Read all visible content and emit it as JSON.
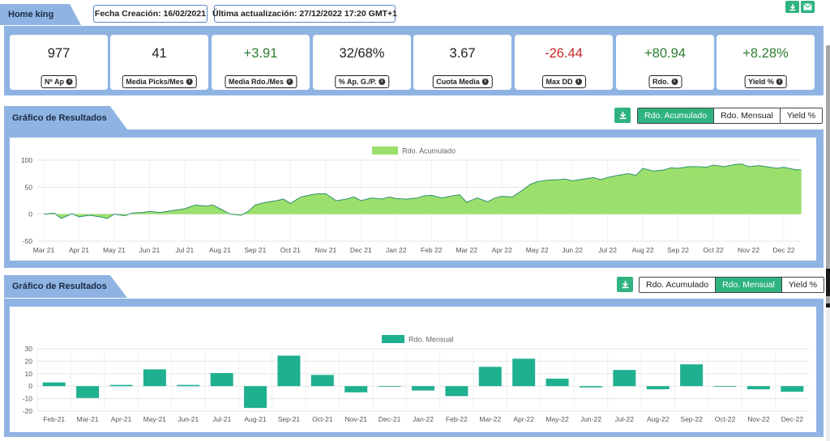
{
  "header": {
    "tab_label": "Home king",
    "created": "Fecha Creación: 16/02/2021",
    "updated": "Última actualización: 27/12/2022 17:20 GMT+1"
  },
  "colors": {
    "band": "#8fb4e3",
    "accent": "#2fb380",
    "area_fill": "#9be06c",
    "area_line": "#2f8f6f",
    "bar": "#1fb090",
    "positive": "#2e7d32",
    "negative": "#c62828"
  },
  "stats": [
    {
      "value": "977",
      "label": "Nº Ap",
      "tone": "neutral"
    },
    {
      "value": "41",
      "label": "Media Picks/Mes",
      "tone": "neutral"
    },
    {
      "value": "+3.91",
      "label": "Media Rdo./Mes",
      "tone": "pos"
    },
    {
      "value": "32/68%",
      "label": "% Ap. G./P.",
      "tone": "neutral"
    },
    {
      "value": "3.67",
      "label": "Cuota Media",
      "tone": "neutral"
    },
    {
      "value": "-26.44",
      "label": "Max DD",
      "tone": "neg"
    },
    {
      "value": "+80.94",
      "label": "Rdo.",
      "tone": "pos"
    },
    {
      "value": "+8.28%",
      "label": "Yield %",
      "tone": "pos"
    }
  ],
  "chart1": {
    "section_title": "Gráfico de Resultados",
    "tabs": [
      "Rdo. Acumulado",
      "Rdo. Mensual",
      "Yield %"
    ],
    "active_tab": 0
  },
  "chart2": {
    "section_title": "Gráfico de Resultados",
    "tabs": [
      "Rdo. Acumulado",
      "Rdo. Mensual",
      "Yield %"
    ],
    "active_tab": 1
  },
  "chart_data": [
    {
      "type": "area",
      "legend": [
        "Rdo. Acumulado"
      ],
      "legend_position": "top",
      "grid": true,
      "ylim": [
        -50,
        100
      ],
      "yticks": [
        -50,
        0,
        50,
        100
      ],
      "xlabels": [
        "Mar 21",
        "Apr 21",
        "May 21",
        "Jun 21",
        "Jul 21",
        "Aug 21",
        "Sep 21",
        "Oct 21",
        "Nov 21",
        "Dec 21",
        "Jan 22",
        "Feb 22",
        "Mar 22",
        "Apr 22",
        "May 22",
        "Jun 22",
        "Jul 22",
        "Aug 22",
        "Sep 22",
        "Oct 22",
        "Nov 22",
        "Dec 22"
      ],
      "series": [
        {
          "name": "Rdo. Acumulado",
          "x": [
            0,
            0.3,
            0.5,
            0.8,
            1.0,
            1.3,
            1.6,
            1.8,
            2.0,
            2.3,
            2.5,
            2.8,
            3.0,
            3.3,
            3.6,
            3.8,
            4.0,
            4.3,
            4.6,
            4.8,
            5.0,
            5.3,
            5.6,
            5.8,
            6.0,
            6.3,
            6.6,
            6.8,
            7.0,
            7.3,
            7.6,
            7.8,
            8.0,
            8.3,
            8.6,
            8.8,
            9.0,
            9.3,
            9.6,
            9.8,
            10.0,
            10.3,
            10.6,
            10.8,
            11.0,
            11.3,
            11.6,
            11.8,
            12.0,
            12.3,
            12.6,
            12.8,
            13.0,
            13.3,
            13.6,
            13.8,
            14.0,
            14.3,
            14.6,
            14.8,
            15.0,
            15.3,
            15.6,
            15.8,
            16.0,
            16.3,
            16.6,
            16.8,
            17.0,
            17.3,
            17.6,
            17.8,
            18.0,
            18.3,
            18.6,
            18.8,
            19.0,
            19.3,
            19.6,
            19.8,
            20.0,
            20.3,
            20.6,
            20.8,
            21.0,
            21.3,
            21.5
          ],
          "values": [
            0,
            2,
            -8,
            1,
            -5,
            -2,
            -5,
            -8,
            0,
            -3,
            2,
            3,
            5,
            3,
            6,
            8,
            10,
            17,
            15,
            17,
            10,
            0,
            -2,
            5,
            17,
            22,
            25,
            28,
            20,
            32,
            36,
            38,
            38,
            25,
            28,
            32,
            25,
            30,
            28,
            32,
            29,
            28,
            30,
            34,
            35,
            30,
            34,
            36,
            22,
            30,
            23,
            30,
            33,
            32,
            45,
            55,
            60,
            63,
            64,
            65,
            62,
            65,
            68,
            64,
            68,
            72,
            75,
            72,
            85,
            80,
            82,
            86,
            85,
            88,
            88,
            87,
            91,
            88,
            92,
            93,
            88,
            90,
            87,
            85,
            87,
            83,
            82
          ]
        }
      ]
    },
    {
      "type": "bar",
      "legend": [
        "Rdo. Mensual"
      ],
      "legend_position": "top",
      "grid": true,
      "ylim": [
        -20,
        30
      ],
      "yticks": [
        -20,
        -10,
        0,
        10,
        20,
        30
      ],
      "categories": [
        "Feb-21",
        "Mar-21",
        "Apr-21",
        "May-21",
        "Jun-21",
        "Jul-21",
        "Aug-21",
        "Sep-21",
        "Oct-21",
        "Nov-21",
        "Dec-21",
        "Jan-22",
        "Feb-22",
        "Mar-22",
        "Apr-22",
        "May-22",
        "Jun-22",
        "Jul-22",
        "Aug-22",
        "Sep-22",
        "Oct-22",
        "Nov-22",
        "Dec-22"
      ],
      "series": [
        {
          "name": "Rdo. Mensual",
          "values": [
            3,
            -9.5,
            1,
            13.5,
            1,
            10.5,
            -17.5,
            24.5,
            9,
            -5,
            0,
            -3.5,
            -8,
            15.5,
            22,
            6,
            -1,
            13,
            -2.5,
            17.5,
            0,
            -2.5,
            -4.5
          ]
        }
      ]
    }
  ]
}
